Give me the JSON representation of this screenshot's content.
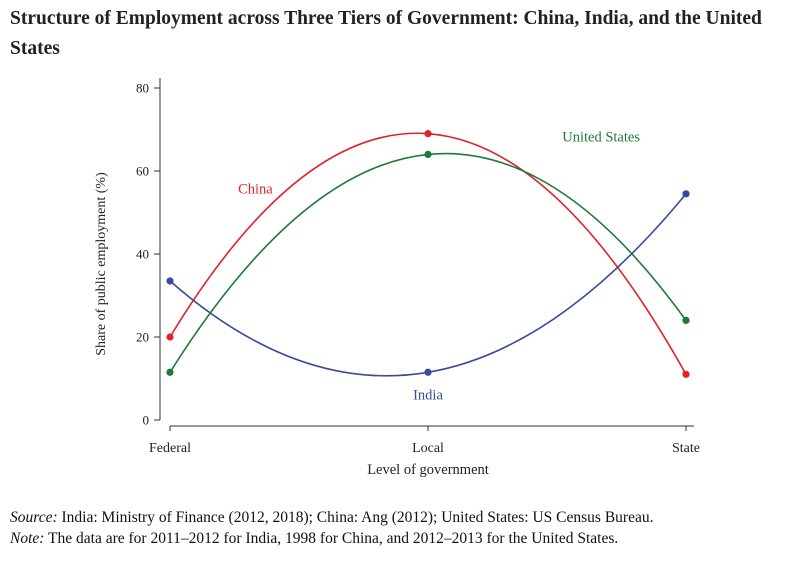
{
  "title": "Structure of Employment across Three Tiers of Government: China, India, and the United States",
  "chart_data": {
    "type": "line",
    "title": "Structure of Employment across Three Tiers of Government: China, India, and the United States",
    "xlabel": "Level of government",
    "ylabel": "Share of public employment (%)",
    "categories": [
      "Federal",
      "Local",
      "State"
    ],
    "ylim": [
      0,
      80
    ],
    "yticks": [
      0,
      20,
      40,
      60,
      80
    ],
    "grid": false,
    "series": [
      {
        "name": "China",
        "values": [
          20,
          69,
          11
        ],
        "color": "#e0232b",
        "label_pos": "upper-left"
      },
      {
        "name": "India",
        "values": [
          33.5,
          11.5,
          54.5
        ],
        "color": "#3a4a9c",
        "label_pos": "below-middle"
      },
      {
        "name": "United States",
        "values": [
          11.5,
          64,
          24
        ],
        "color": "#1e7a3a",
        "label_pos": "upper-right"
      }
    ]
  },
  "notes": {
    "source_label": "Source:",
    "source_text": " India: Ministry of Finance (2012, 2018); China: Ang (2012); United States: US Census Bureau.",
    "note_label": "Note:",
    "note_text": " The data are for 2011–2012 for India, 1998 for China, and 2012–2013 for the United States."
  }
}
